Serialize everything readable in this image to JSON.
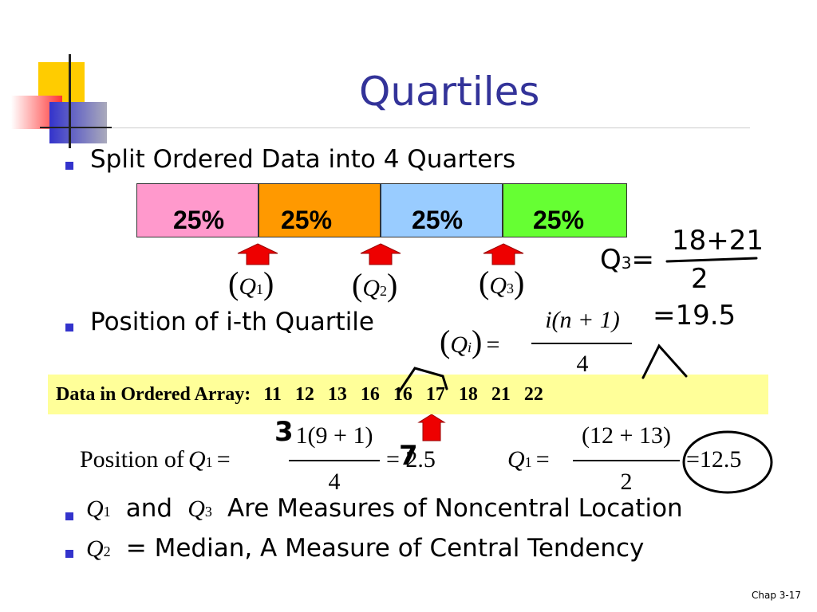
{
  "title": "Quartiles",
  "bullets": {
    "split": "Split Ordered Data into 4 Quarters",
    "position": "Position of i-th Quartile"
  },
  "quarters": [
    "25%",
    "25%",
    "25%",
    "25%"
  ],
  "quartile_marks": [
    {
      "open": "(",
      "q": "Q",
      "sub": "1",
      "close": ")"
    },
    {
      "open": "(",
      "q": "Q",
      "sub": "2",
      "close": ")"
    },
    {
      "open": "(",
      "q": "Q",
      "sub": "3",
      "close": ")"
    }
  ],
  "position_formula": {
    "open": "(",
    "q": "Q",
    "sub": "i",
    "close": ")",
    "eq": "=",
    "numerator": "i(n + 1)",
    "denominator": "4"
  },
  "array": {
    "label": "Data in Ordered Array:",
    "values": [
      11,
      12,
      13,
      16,
      16,
      17,
      18,
      21,
      22
    ]
  },
  "example_1": {
    "prefix": "Position of",
    "q": "Q",
    "sub": "1",
    "eq": "=",
    "numerator": "1(9 + 1)",
    "denominator": "4",
    "result": "= 2.5"
  },
  "example_2": {
    "q": "Q",
    "sub": "1",
    "eq": "=",
    "numerator": "(12 + 13)",
    "denominator": "2",
    "result": "=12.5"
  },
  "noncentral": {
    "q1": "Q",
    "q1_sub": "1",
    "and": "and",
    "q3": "Q",
    "q3_sub": "3",
    "text": "Are Measures of Noncentral Location"
  },
  "central": {
    "q": "Q",
    "sub": "2",
    "text": "= Median, A Measure of Central Tendency"
  },
  "handwriting": {
    "q3": "Q",
    "q3_sub": "3",
    "eq": "=",
    "numerator": "18+21",
    "denominator": "2",
    "result": "=19.5",
    "over_1": "3",
    "over_2": "7"
  },
  "footer": "Chap 3-17"
}
